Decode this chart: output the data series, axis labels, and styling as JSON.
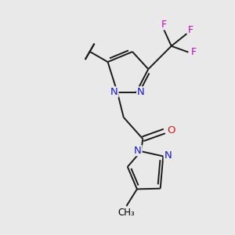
{
  "background_color": "#e9e9e9",
  "figsize": [
    3.0,
    3.0
  ],
  "dpi": 100,
  "atom_colors": {
    "C": "#000000",
    "N": "#1a1acc",
    "O": "#cc1a1a",
    "F": "#cc00cc"
  },
  "bond_color": "#1a1a1a",
  "bond_width": 1.4,
  "font_size": 9.5
}
